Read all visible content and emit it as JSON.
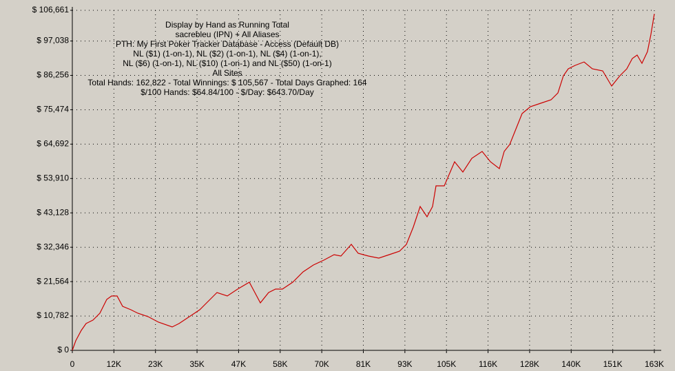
{
  "chart_data": {
    "type": "line",
    "title_lines": [
      "Display by Hand as Running Total",
      "sacrebleu (IPN) + All Aliases",
      "PTH: My First Poker Tracker Database - Access (Default DB)",
      "NL ($1) (1-on-1), NL ($2) (1-on-1), NL ($4) (1-on-1),",
      "NL ($6) (1-on-1), NL ($10) (1-on-1) and NL ($50) (1-on-1)",
      "All Sites",
      "Total Hands: 162,822 - Total Winnings: $ 105,567 - Total Days Graphed: 164",
      "$/100 Hands: $64.84/100 - $/Day: $643.70/Day"
    ],
    "x": [
      0,
      963,
      2505,
      3854,
      5781,
      7708,
      9635,
      10984,
      12525,
      14066,
      16378,
      18305,
      21196,
      24086,
      27940,
      29867,
      32757,
      35647,
      37574,
      40465,
      43355,
      46246,
      49521,
      51063,
      52604,
      54917,
      56844,
      58771,
      61661,
      64551,
      67442,
      70332,
      73222,
      75149,
      78040,
      79967,
      82857,
      85747,
      88637,
      91528,
      93455,
      95382,
      97309,
      99236,
      100777,
      101741,
      104053,
      106943,
      109256,
      111761,
      114651,
      116963,
      119468,
      120817,
      122359,
      124286,
      125827,
      128139,
      131030,
      133920,
      135847,
      137389,
      138737,
      140664,
      143169,
      145482,
      148372,
      150877,
      153189,
      155116,
      156658,
      158007,
      159356,
      160897,
      161861,
      162822
    ],
    "series": [
      {
        "color": "#cc0000",
        "values": [
          0,
          3023,
          6261,
          8420,
          9500,
          11659,
          15977,
          17057,
          17057,
          13818,
          12738,
          11659,
          10579,
          8852,
          7341,
          8420,
          10579,
          12738,
          14897,
          18136,
          17057,
          19216,
          21375,
          18136,
          14897,
          18136,
          19216,
          19216,
          21375,
          24613,
          26773,
          28284,
          30011,
          29580,
          33250,
          30443,
          29580,
          28932,
          30011,
          31091,
          33250,
          38648,
          45125,
          41887,
          45125,
          51602,
          51602,
          59159,
          55921,
          60239,
          62398,
          59159,
          57000,
          62398,
          64557,
          69955,
          74273,
          76432,
          77511,
          78591,
          80750,
          86148,
          88307,
          89386,
          90466,
          88307,
          87659,
          82909,
          86148,
          88307,
          91546,
          92625,
          90034,
          93705,
          99103,
          105567
        ]
      }
    ],
    "xlim": [
      0,
      162822
    ],
    "ylim": [
      0,
      106661
    ],
    "xticks": [
      0,
      {
        "value": 11630,
        "label": "12K"
      },
      {
        "value": 23260,
        "label": "23K"
      },
      {
        "value": 34890,
        "label": "35K"
      },
      {
        "value": 46520,
        "label": "47K"
      },
      {
        "value": 58150,
        "label": "58K"
      },
      {
        "value": 69781,
        "label": "70K"
      },
      {
        "value": 81411,
        "label": "81K"
      },
      {
        "value": 93041,
        "label": "93K"
      },
      {
        "value": 104671,
        "label": "105K"
      },
      {
        "value": 116301,
        "label": "116K"
      },
      {
        "value": 127931,
        "label": "128K"
      },
      {
        "value": 139561,
        "label": "140K"
      },
      {
        "value": 151191,
        "label": "151K"
      },
      {
        "value": 162822,
        "label": "163K"
      }
    ],
    "yticks": [
      {
        "value": 0,
        "label": "$ 0"
      },
      {
        "value": 10782,
        "label": "$ 10,782"
      },
      {
        "value": 21564,
        "label": "$ 21,564"
      },
      {
        "value": 32346,
        "label": "$ 32,346"
      },
      {
        "value": 43128,
        "label": "$ 43,128"
      },
      {
        "value": 53910,
        "label": "$ 53,910"
      },
      {
        "value": 64692,
        "label": "$ 64,692"
      },
      {
        "value": 75474,
        "label": "$ 75,474"
      },
      {
        "value": 86256,
        "label": "$ 86,256"
      },
      {
        "value": 97038,
        "label": "$ 97,038"
      },
      {
        "value": 106661,
        "label": "$ 106,661"
      }
    ],
    "grid": true
  }
}
